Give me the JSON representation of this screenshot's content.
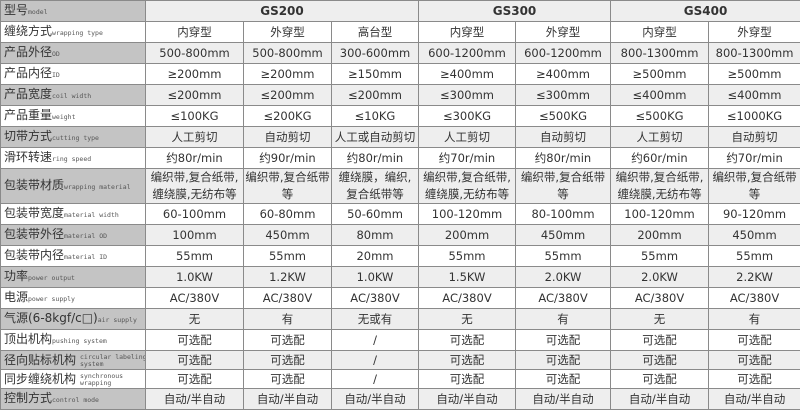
{
  "header": {
    "label_cn": "型号",
    "label_en": "model",
    "groups": [
      "GS200",
      "GS300",
      "GS400"
    ]
  },
  "rows": [
    {
      "cn": "缠绕方式",
      "en": "wrapping type",
      "cells": [
        "内穿型",
        "外穿型",
        "高台型",
        "内穿型",
        "外穿型",
        "内穿型",
        "外穿型"
      ]
    },
    {
      "cn": "产品外径",
      "en": "OD",
      "cells": [
        "500-800mm",
        "500-800mm",
        "300-600mm",
        "600-1200mm",
        "600-1200mm",
        "800-1300mm",
        "800-1300mm"
      ]
    },
    {
      "cn": "产品内径",
      "en": "ID",
      "cells": [
        "≥200mm",
        "≥200mm",
        "≥150mm",
        "≥400mm",
        "≥400mm",
        "≥500mm",
        "≥500mm"
      ]
    },
    {
      "cn": "产品宽度",
      "en": "coil width",
      "cells": [
        "≤200mm",
        "≤200mm",
        "≤200mm",
        "≤300mm",
        "≤300mm",
        "≤400mm",
        "≤400mm"
      ]
    },
    {
      "cn": "产品重量",
      "en": "weight",
      "cells": [
        "≤100KG",
        "≤200KG",
        "≤10KG",
        "≤300KG",
        "≤500KG",
        "≤500KG",
        "≤1000KG"
      ]
    },
    {
      "cn": "切带方式",
      "en": "cutting type",
      "cells": [
        "人工剪切",
        "自动剪切",
        "人工或自动剪切",
        "人工剪切",
        "自动剪切",
        "人工剪切",
        "自动剪切"
      ]
    },
    {
      "cn": "滑环转速",
      "en": "ring speed",
      "cells": [
        "约80r/min",
        "约90r/min",
        "约80r/min",
        "约70r/min",
        "约80r/min",
        "约60r/min",
        "约70r/min"
      ]
    },
    {
      "cn": "包装带材质",
      "en": "wrapping material",
      "cells": [
        "编织带,复合纸带,缠绕膜,无纺布等",
        "编织带,复合纸带等",
        "缠绕膜，编织,复合纸带等",
        "编织带,复合纸带,缠绕膜,无纺布等",
        "编织带,复合纸带等",
        "编织带,复合纸带,缠绕膜,无纺布等",
        "编织带,复合纸带等"
      ]
    },
    {
      "cn": "包装带宽度",
      "en": "material width",
      "cells": [
        "60-100mm",
        "60-80mm",
        "50-60mm",
        "100-120mm",
        "80-100mm",
        "100-120mm",
        "90-120mm"
      ]
    },
    {
      "cn": "包装带外径",
      "en": "material OD",
      "cells": [
        "100mm",
        "450mm",
        "80mm",
        "200mm",
        "450mm",
        "200mm",
        "450mm"
      ]
    },
    {
      "cn": "包装带内径",
      "en": "material ID",
      "cells": [
        "55mm",
        "55mm",
        "20mm",
        "55mm",
        "55mm",
        "55mm",
        "55mm"
      ]
    },
    {
      "cn": "功率",
      "en": "power output",
      "cells": [
        "1.0KW",
        "1.2KW",
        "1.0KW",
        "1.5KW",
        "2.0KW",
        "2.0KW",
        "2.2KW"
      ]
    },
    {
      "cn": "电源",
      "en": "power supply",
      "cells": [
        "AC/380V",
        "AC/380V",
        "AC/380V",
        "AC/380V",
        "AC/380V",
        "AC/380V",
        "AC/380V"
      ]
    },
    {
      "cn": "气源(6-8kgf/c□)",
      "en": "air supply",
      "cells": [
        "无",
        "有",
        "无或有",
        "无",
        "有",
        "无",
        "有"
      ]
    },
    {
      "cn": "顶出机构",
      "en": "pushing system",
      "cells": [
        "可选配",
        "可选配",
        "/",
        "可选配",
        "可选配",
        "可选配",
        "可选配"
      ]
    },
    {
      "cn": "径向贴标机构",
      "en": "circular labeling system",
      "cells": [
        "可选配",
        "可选配",
        "/",
        "可选配",
        "可选配",
        "可选配",
        "可选配"
      ]
    },
    {
      "cn": "同步缠绕机构",
      "en": "synchronous wrapping",
      "cells": [
        "可选配",
        "可选配",
        "/",
        "可选配",
        "可选配",
        "可选配",
        "可选配"
      ]
    },
    {
      "cn": "控制方式",
      "en": "control mode",
      "cells": [
        "自动/半自动",
        "自动/半自动",
        "自动/半自动",
        "自动/半自动",
        "自动/半自动",
        "自动/半自动",
        "自动/半自动"
      ]
    }
  ]
}
